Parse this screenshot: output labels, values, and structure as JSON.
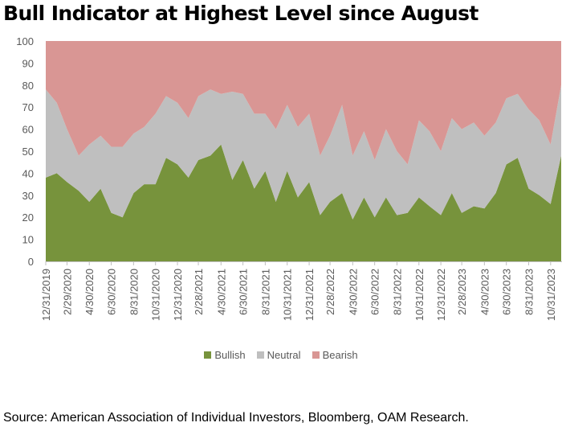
{
  "title": "Bull Indicator at Highest Level since August",
  "source": "Source: American Association of Individual Investors, Bloomberg, OAM Research.",
  "chart_data": {
    "type": "area",
    "stacked": true,
    "title": "Bull Indicator at Highest Level since August",
    "ylim": [
      0,
      100
    ],
    "yticks": [
      0,
      10,
      20,
      30,
      40,
      50,
      60,
      70,
      80,
      90,
      100
    ],
    "xtick_labels": [
      "12/31/2019",
      "2/29/2020",
      "4/30/2020",
      "6/30/2020",
      "8/31/2020",
      "10/31/2020",
      "12/31/2020",
      "2/28/2021",
      "4/30/2021",
      "6/30/2021",
      "8/31/2021",
      "10/31/2021",
      "12/31/2021",
      "2/28/2022",
      "4/30/2022",
      "6/30/2022",
      "8/31/2022",
      "10/31/2022",
      "12/31/2022",
      "2/28/2023",
      "4/30/2023",
      "6/30/2023",
      "8/31/2023",
      "10/31/2023"
    ],
    "legend_position": "bottom",
    "grid": false,
    "x": [
      "12/31/2019",
      "1/31/2020",
      "2/29/2020",
      "3/31/2020",
      "4/30/2020",
      "5/31/2020",
      "6/30/2020",
      "7/31/2020",
      "8/31/2020",
      "9/30/2020",
      "10/31/2020",
      "11/30/2020",
      "12/31/2020",
      "1/31/2021",
      "2/28/2021",
      "3/31/2021",
      "4/30/2021",
      "5/31/2021",
      "6/30/2021",
      "7/31/2021",
      "8/31/2021",
      "9/30/2021",
      "10/31/2021",
      "11/30/2021",
      "12/31/2021",
      "1/31/2022",
      "2/28/2022",
      "3/31/2022",
      "4/30/2022",
      "5/31/2022",
      "6/30/2022",
      "7/31/2022",
      "8/31/2022",
      "9/30/2022",
      "10/31/2022",
      "11/30/2022",
      "12/31/2022",
      "1/31/2023",
      "2/28/2023",
      "3/31/2023",
      "4/30/2023",
      "5/31/2023",
      "6/30/2023",
      "7/31/2023",
      "8/31/2023",
      "9/30/2023",
      "10/31/2023",
      "11/30/2023"
    ],
    "series": [
      {
        "name": "Bullish",
        "color": "#77933c",
        "values": [
          38,
          40,
          36,
          32,
          27,
          33,
          22,
          20,
          31,
          35,
          35,
          47,
          44,
          38,
          46,
          48,
          53,
          37,
          46,
          33,
          41,
          27,
          41,
          29,
          36,
          21,
          27,
          31,
          19,
          29,
          20,
          29,
          21,
          22,
          29,
          25,
          21,
          31,
          22,
          25,
          24,
          31,
          44,
          47,
          33,
          30,
          26,
          48
        ]
      },
      {
        "name": "Neutral",
        "color": "#bfbfbf",
        "values": [
          40,
          32,
          24,
          16,
          26,
          24,
          30,
          32,
          27,
          26,
          32,
          28,
          28,
          27,
          29,
          30,
          23,
          40,
          30,
          34,
          26,
          33,
          30,
          32,
          31,
          27,
          30,
          40,
          29,
          30,
          26,
          31,
          29,
          22,
          35,
          34,
          29,
          34,
          38,
          38,
          33,
          32,
          30,
          29,
          36,
          34,
          27,
          32
        ]
      },
      {
        "name": "Bearish",
        "color": "#d99694",
        "values": [
          22,
          28,
          40,
          52,
          47,
          43,
          48,
          48,
          42,
          39,
          33,
          25,
          28,
          35,
          25,
          22,
          24,
          23,
          24,
          33,
          33,
          40,
          29,
          39,
          33,
          52,
          43,
          29,
          52,
          41,
          54,
          40,
          50,
          56,
          36,
          41,
          50,
          35,
          40,
          37,
          43,
          37,
          26,
          24,
          31,
          36,
          47,
          20
        ]
      }
    ]
  }
}
